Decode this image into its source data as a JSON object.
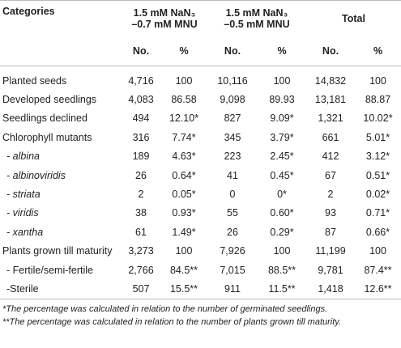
{
  "header": {
    "categories": "Categories",
    "groups": [
      [
        "1.5 mM NaN₃",
        "–0.7 mM MNU"
      ],
      [
        "1.5 mM NaN₃",
        "–0.5 mM MNU"
      ],
      [
        "Total"
      ]
    ],
    "subheaders": [
      "No.",
      "%",
      "No.",
      "%",
      "No.",
      "%"
    ]
  },
  "table": {
    "rows": [
      [
        "Planted seeds",
        "4,716",
        "100",
        "10,116",
        "100",
        "14,832",
        "100"
      ],
      [
        "Developed seedlings",
        "4,083",
        "86.58",
        "9,098",
        "89.93",
        "13,181",
        "88.87"
      ],
      [
        "Seedlings declined",
        "494",
        "12.10*",
        "827",
        "9.09*",
        "1,321",
        "10.02*"
      ],
      [
        "Chlorophyll mutants",
        "316",
        "7.74*",
        "345",
        "3.79*",
        "661",
        "5.01*"
      ],
      [
        "- albina",
        "189",
        "4.63*",
        "223",
        "2.45*",
        "412",
        "3.12*"
      ],
      [
        "- albinoviridis",
        "26",
        "0.64*",
        "41",
        "0.45*",
        "67",
        "0.51*"
      ],
      [
        "- striata",
        "2",
        "0.05*",
        "0",
        "0*",
        "2",
        "0.02*"
      ],
      [
        "- viridis",
        "38",
        "0.93*",
        "55",
        "0.60*",
        "93",
        "0.71*"
      ],
      [
        "- xantha",
        "61",
        "1.49*",
        "26",
        "0.29*",
        "87",
        "0.66*"
      ],
      [
        "Plants grown till maturity",
        "3,273",
        "100",
        "7,926",
        "100",
        "11,199",
        "100"
      ],
      [
        "- Fertile/semi-fertile",
        "2,766",
        "84.5**",
        "7,015",
        "88.5**",
        "9,781",
        "87.4**"
      ],
      [
        "-Sterile",
        "507",
        "15.5**",
        "911",
        "11.5**",
        "1,418",
        "12.6**"
      ]
    ]
  },
  "footnotes": [
    "*The percentage was calculated in relation to the number of germinated seedlings.",
    "**The percentage was calculated in relation to the number of plants grown till maturity."
  ]
}
